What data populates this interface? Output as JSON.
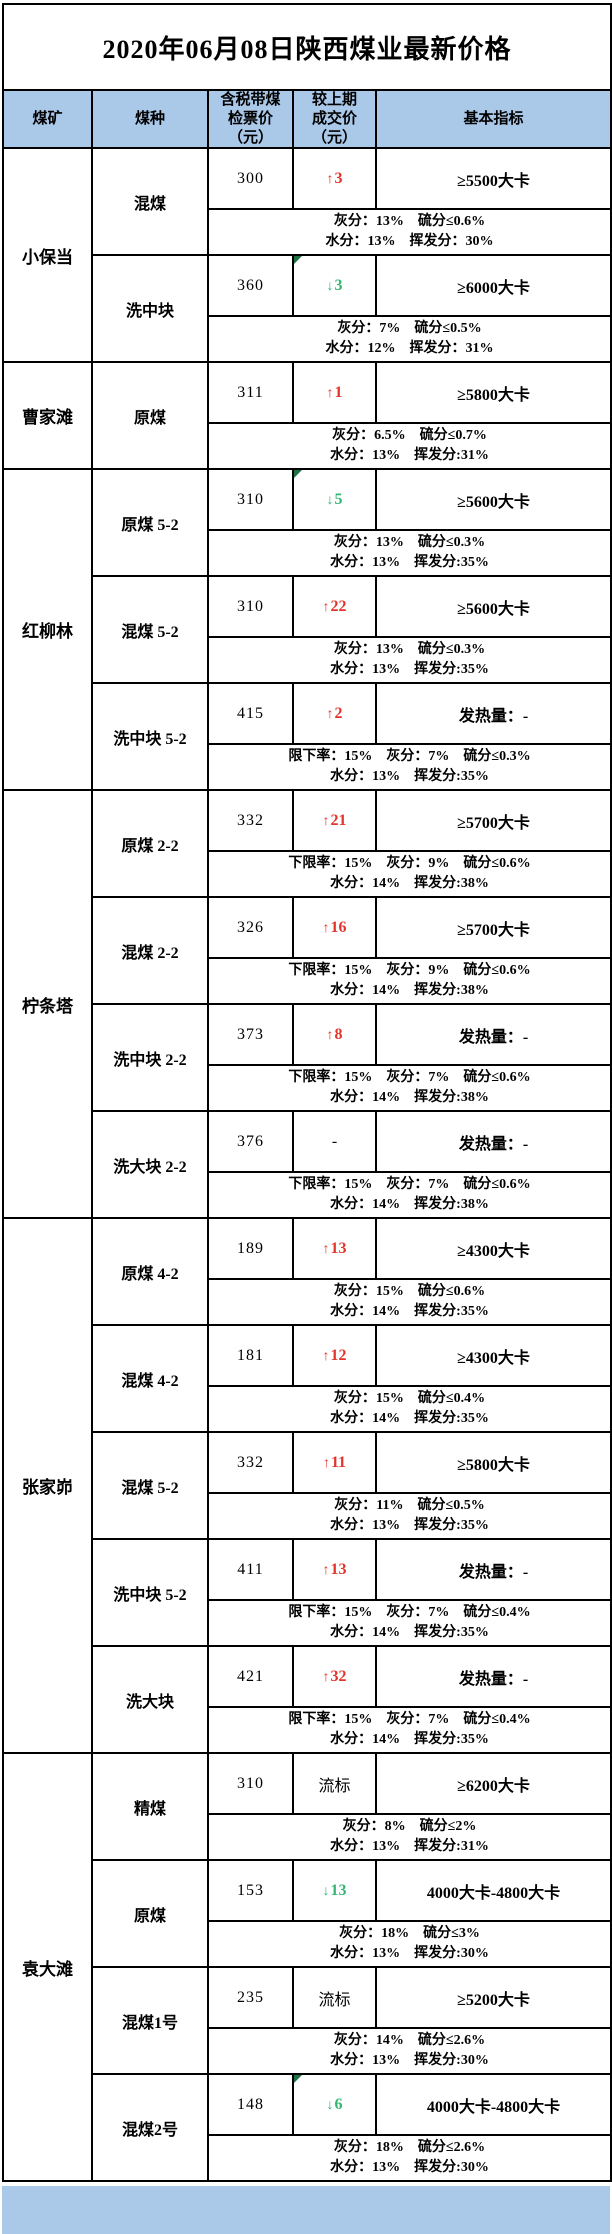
{
  "title": "2020年06月08日陕西煤业最新价格",
  "header": {
    "mine": "煤矿",
    "type": "煤种",
    "price_lines": [
      "含税带煤",
      "检票价",
      "（元）"
    ],
    "change_lines": [
      "较上期",
      "成交价",
      "（元）"
    ],
    "indicator": "基本指标"
  },
  "colors": {
    "header_bg": "#aac8e8",
    "up_red": "#e3342c",
    "down_green": "#33b573",
    "marker_green": "#1e7145",
    "border_black": "#000000"
  },
  "mines": [
    {
      "name": "小保当",
      "rows": [
        {
          "type": "混煤",
          "price": "300",
          "change": {
            "arrow": "↑",
            "value": "3",
            "dir": "up",
            "marker": false
          },
          "indicator": "≥5500大卡",
          "detail1": "灰分：13%　硫分≤0.6%",
          "detail2": "水分：13%　挥发分：30%"
        },
        {
          "type": "洗中块",
          "price": "360",
          "change": {
            "arrow": "↓",
            "value": "3",
            "dir": "down",
            "marker": true
          },
          "indicator": "≥6000大卡",
          "detail1": "灰分：7%　硫分≤0.5%",
          "detail2": "水分：12%　挥发分：31%"
        }
      ]
    },
    {
      "name": "曹家滩",
      "rows": [
        {
          "type": "原煤",
          "price": "311",
          "change": {
            "arrow": "↑",
            "value": "1",
            "dir": "up",
            "marker": false
          },
          "indicator": "≥5800大卡",
          "detail1": "灰分：6.5%　硫分≤0.7%",
          "detail2": "水分：13%　挥发分:31%"
        }
      ]
    },
    {
      "name": "红柳林",
      "rows": [
        {
          "type": "原煤 5-2",
          "price": "310",
          "change": {
            "arrow": "↓",
            "value": "5",
            "dir": "down",
            "marker": true
          },
          "indicator": "≥5600大卡",
          "detail1": "灰分：13%　硫分≤0.3%",
          "detail2": "水分：13%　挥发分:35%"
        },
        {
          "type": "混煤 5-2",
          "price": "310",
          "change": {
            "arrow": "↑",
            "value": "22",
            "dir": "up",
            "marker": false
          },
          "indicator": "≥5600大卡",
          "detail1": "灰分：13%　硫分≤0.3%",
          "detail2": "水分：13%　挥发分:35%"
        },
        {
          "type": "洗中块 5-2",
          "price": "415",
          "change": {
            "arrow": "↑",
            "value": "2",
            "dir": "up",
            "marker": false
          },
          "indicator": "发热量：-",
          "detail1": "限下率：15%　灰分：7%　硫分≤0.3%",
          "detail2": "水分：13%　挥发分:35%"
        }
      ]
    },
    {
      "name": "柠条塔",
      "rows": [
        {
          "type": "原煤 2-2",
          "price": "332",
          "change": {
            "arrow": "↑",
            "value": "21",
            "dir": "up",
            "marker": false
          },
          "indicator": "≥5700大卡",
          "detail1": "下限率：15%　灰分：9%　硫分≤0.6%",
          "detail2": "水分：14%　挥发分:38%"
        },
        {
          "type": "混煤 2-2",
          "price": "326",
          "change": {
            "arrow": "↑",
            "value": "16",
            "dir": "up",
            "marker": false
          },
          "indicator": "≥5700大卡",
          "detail1": "下限率：15%　灰分：9%　硫分≤0.6%",
          "detail2": "水分：14%　挥发分:38%"
        },
        {
          "type": "洗中块 2-2",
          "price": "373",
          "change": {
            "arrow": "↑",
            "value": "8",
            "dir": "up",
            "marker": false
          },
          "indicator": "发热量：-",
          "detail1": "下限率：15%　灰分：7%　硫分≤0.6%",
          "detail2": "水分：14%　挥发分:38%"
        },
        {
          "type": "洗大块 2-2",
          "price": "376",
          "change": {
            "arrow": "",
            "value": "-",
            "dir": "none",
            "marker": false
          },
          "indicator": "发热量：-",
          "detail1": "下限率：15%　灰分：7%　硫分≤0.6%",
          "detail2": "水分：14%　挥发分:38%"
        }
      ]
    },
    {
      "name": "张家峁",
      "rows": [
        {
          "type": "原煤 4-2",
          "price": "189",
          "change": {
            "arrow": "↑",
            "value": "13",
            "dir": "up",
            "marker": false
          },
          "indicator": "≥4300大卡",
          "detail1": "灰分：15%　硫分≤0.6%",
          "detail2": "水分：14%　挥发分:35%"
        },
        {
          "type": "混煤 4-2",
          "price": "181",
          "change": {
            "arrow": "↑",
            "value": "12",
            "dir": "up",
            "marker": false
          },
          "indicator": "≥4300大卡",
          "detail1": "灰分：15%　硫分≤0.4%",
          "detail2": "水分：14%　挥发分:35%"
        },
        {
          "type": "混煤 5-2",
          "price": "332",
          "change": {
            "arrow": "↑",
            "value": "11",
            "dir": "up",
            "marker": false
          },
          "indicator": "≥5800大卡",
          "detail1": "灰分：11%　硫分≤0.5%",
          "detail2": "水分：13%　挥发分:35%"
        },
        {
          "type": "洗中块 5-2",
          "price": "411",
          "change": {
            "arrow": "↑",
            "value": "13",
            "dir": "up",
            "marker": false
          },
          "indicator": "发热量：-",
          "detail1": "限下率：15%　灰分：7%　硫分≤0.4%",
          "detail2": "水分：14%　挥发分:35%"
        },
        {
          "type": "洗大块",
          "price": "421",
          "change": {
            "arrow": "↑",
            "value": "32",
            "dir": "up",
            "marker": false
          },
          "indicator": "发热量：-",
          "detail1": "限下率：15%　灰分：7%　硫分≤0.4%",
          "detail2": "水分：14%　挥发分:35%"
        }
      ]
    },
    {
      "name": "袁大滩",
      "rows": [
        {
          "type": "精煤",
          "price": "310",
          "change": {
            "arrow": "",
            "value": "流标",
            "dir": "none",
            "marker": false
          },
          "indicator": "≥6200大卡",
          "detail1": "灰分：8%　硫分≤2%",
          "detail2": "水分：13%　挥发分:31%"
        },
        {
          "type": "原煤",
          "price": "153",
          "change": {
            "arrow": "↓",
            "value": "13",
            "dir": "down",
            "marker": false
          },
          "indicator": "4000大卡-4800大卡",
          "detail1": "灰分：18%　硫分≤3%",
          "detail2": "水分：13%　挥发分:30%"
        },
        {
          "type": "混煤1号",
          "price": "235",
          "change": {
            "arrow": "",
            "value": "流标",
            "dir": "none",
            "marker": false
          },
          "indicator": "≥5200大卡",
          "detail1": "灰分：14%　硫分≤2.6%",
          "detail2": "水分：13%　挥发分:30%"
        },
        {
          "type": "混煤2号",
          "price": "148",
          "change": {
            "arrow": "↓",
            "value": "6",
            "dir": "down",
            "marker": true
          },
          "indicator": "4000大卡-4800大卡",
          "detail1": "灰分：18%　硫分≤2.6%",
          "detail2": "水分：13%　挥发分:30%"
        }
      ]
    }
  ]
}
